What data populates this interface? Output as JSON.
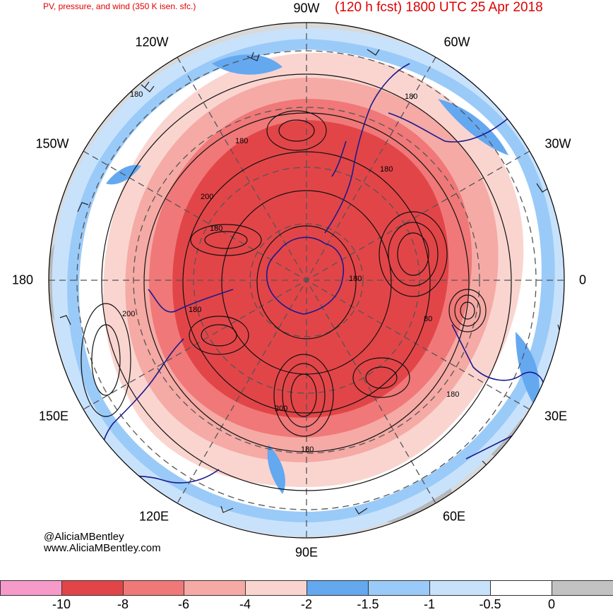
{
  "header": {
    "left_title": "PV, pressure, and wind (350 K isen. sfc.)",
    "right_title": "(120 h fcst) 1800 UTC 25 Apr 2018"
  },
  "map": {
    "projection": "north-polar-stereographic",
    "longitude_labels": [
      "90W",
      "120W",
      "60W",
      "150W",
      "30W",
      "180",
      "0",
      "150E",
      "30E",
      "120E",
      "60E",
      "90E"
    ],
    "contour_labels": [
      "180",
      "180",
      "180",
      "180",
      "200",
      "180",
      "200",
      "180",
      "180",
      "80",
      "180",
      "200",
      "180"
    ],
    "colors": {
      "coastline": "#1a1a8c",
      "contour": "#111111",
      "graticule": "#555555"
    }
  },
  "credits": {
    "twitter": "@AliciaMBentley",
    "website": "www.AliciaMBentley.com"
  },
  "colorbar": {
    "colors": [
      "#f59ac9",
      "#e24548",
      "#f07878",
      "#f5aaa5",
      "#fad5d0",
      "#64a8f0",
      "#9acaf8",
      "#c8e2fc",
      "#ffffff",
      "#c2c2c2"
    ],
    "tick_labels": [
      "-10",
      "-8",
      "-6",
      "-4",
      "-2",
      "-1.5",
      "-1",
      "-0.5",
      "0"
    ]
  }
}
